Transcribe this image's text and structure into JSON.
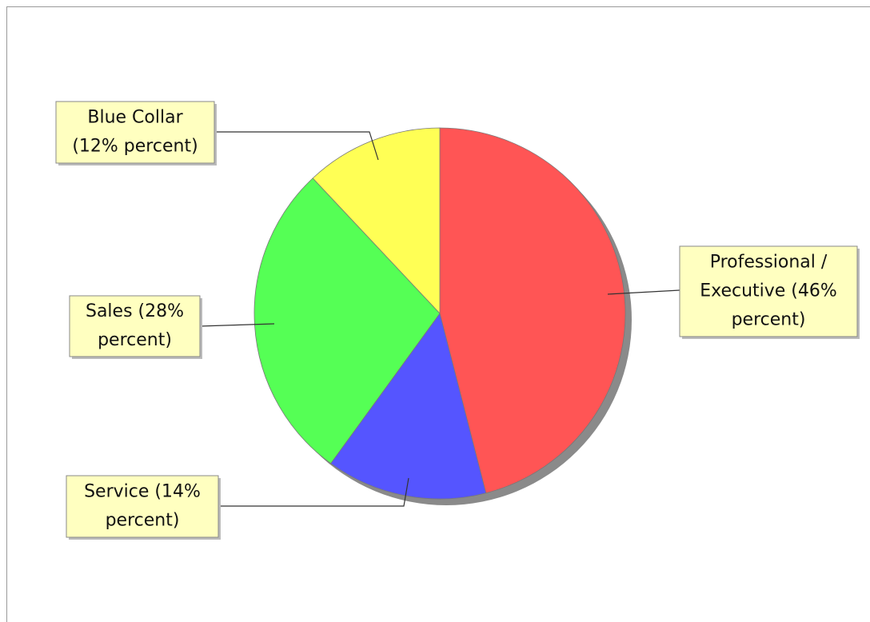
{
  "chart_data": {
    "type": "pie",
    "values": [
      46,
      14,
      28,
      12
    ],
    "value_labels": [
      "Professional / Executive (46% percent)",
      "Service (14% percent)",
      "Sales (28% percent)",
      "Blue Collar (12% percent)"
    ],
    "colors": [
      "#ff5555",
      "#5555ff",
      "#55ff55",
      "#ffff55"
    ]
  }
}
